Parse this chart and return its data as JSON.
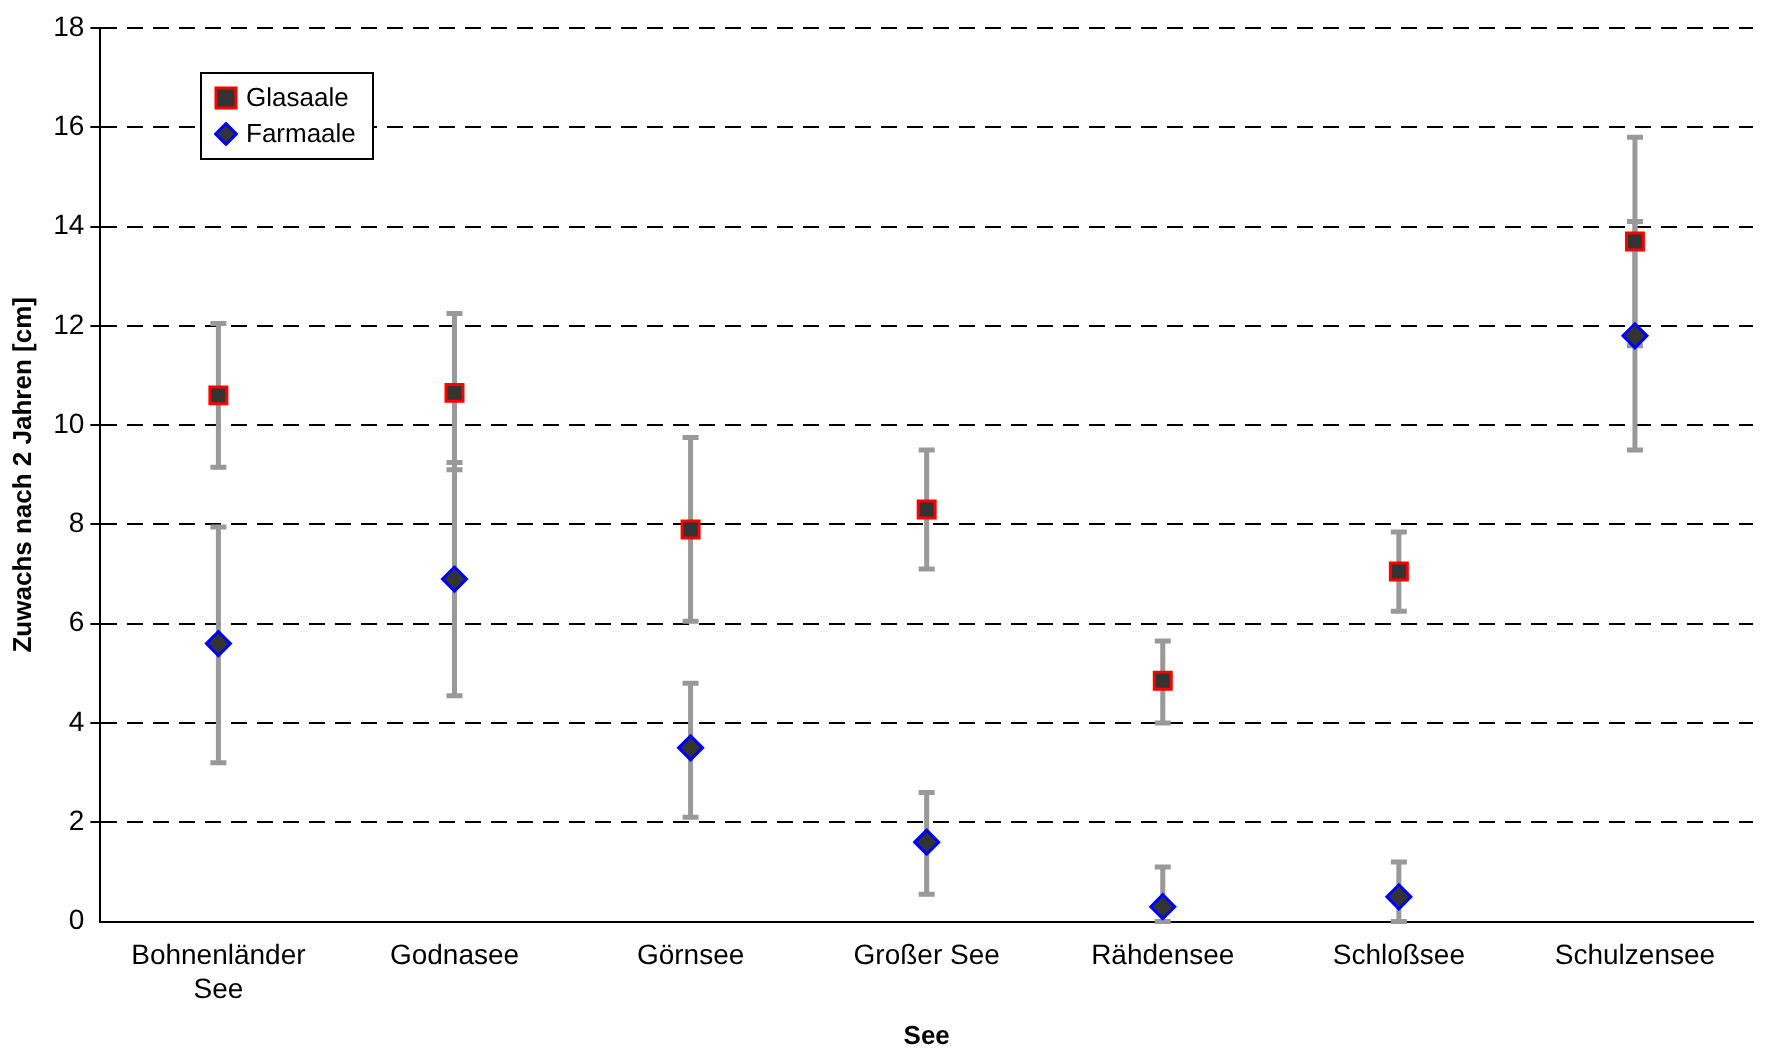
{
  "chart_data": {
    "type": "scatter",
    "xlabel": "See",
    "ylabel": "Zuwachs nach 2 Jahren [cm]",
    "categories": [
      "Bohnenländer See",
      "Godnasee",
      "Görnsee",
      "Großer See",
      "Rähdensee",
      "Schloßsee",
      "Schulzensee"
    ],
    "series": [
      {
        "name": "Glasaale",
        "color": "#333333",
        "marker": "square",
        "values": [
          10.6,
          10.65,
          7.9,
          8.3,
          4.85,
          7.05,
          13.7
        ],
        "errors": [
          [
            9.15,
            12.05
          ],
          [
            9.1,
            12.25
          ],
          [
            6.05,
            9.75
          ],
          [
            7.1,
            9.5
          ],
          [
            4.0,
            5.65
          ],
          [
            6.25,
            7.85
          ],
          [
            11.6,
            15.8
          ]
        ]
      },
      {
        "name": "Farmaale",
        "color": "#333333",
        "marker": "diamond",
        "values": [
          5.6,
          6.9,
          3.5,
          1.6,
          0.3,
          0.5,
          11.8
        ],
        "errors": [
          [
            3.2,
            7.95
          ],
          [
            4.55,
            9.25
          ],
          [
            2.1,
            4.8
          ],
          [
            0.55,
            2.6
          ],
          [
            0,
            1.1
          ],
          [
            0,
            1.2
          ],
          [
            9.5,
            14.1
          ]
        ]
      }
    ],
    "ylim": [
      0,
      18
    ],
    "yticks": [
      0,
      2,
      4,
      6,
      8,
      10,
      12,
      14,
      16,
      18
    ],
    "grid": "y",
    "legend": "top left"
  }
}
